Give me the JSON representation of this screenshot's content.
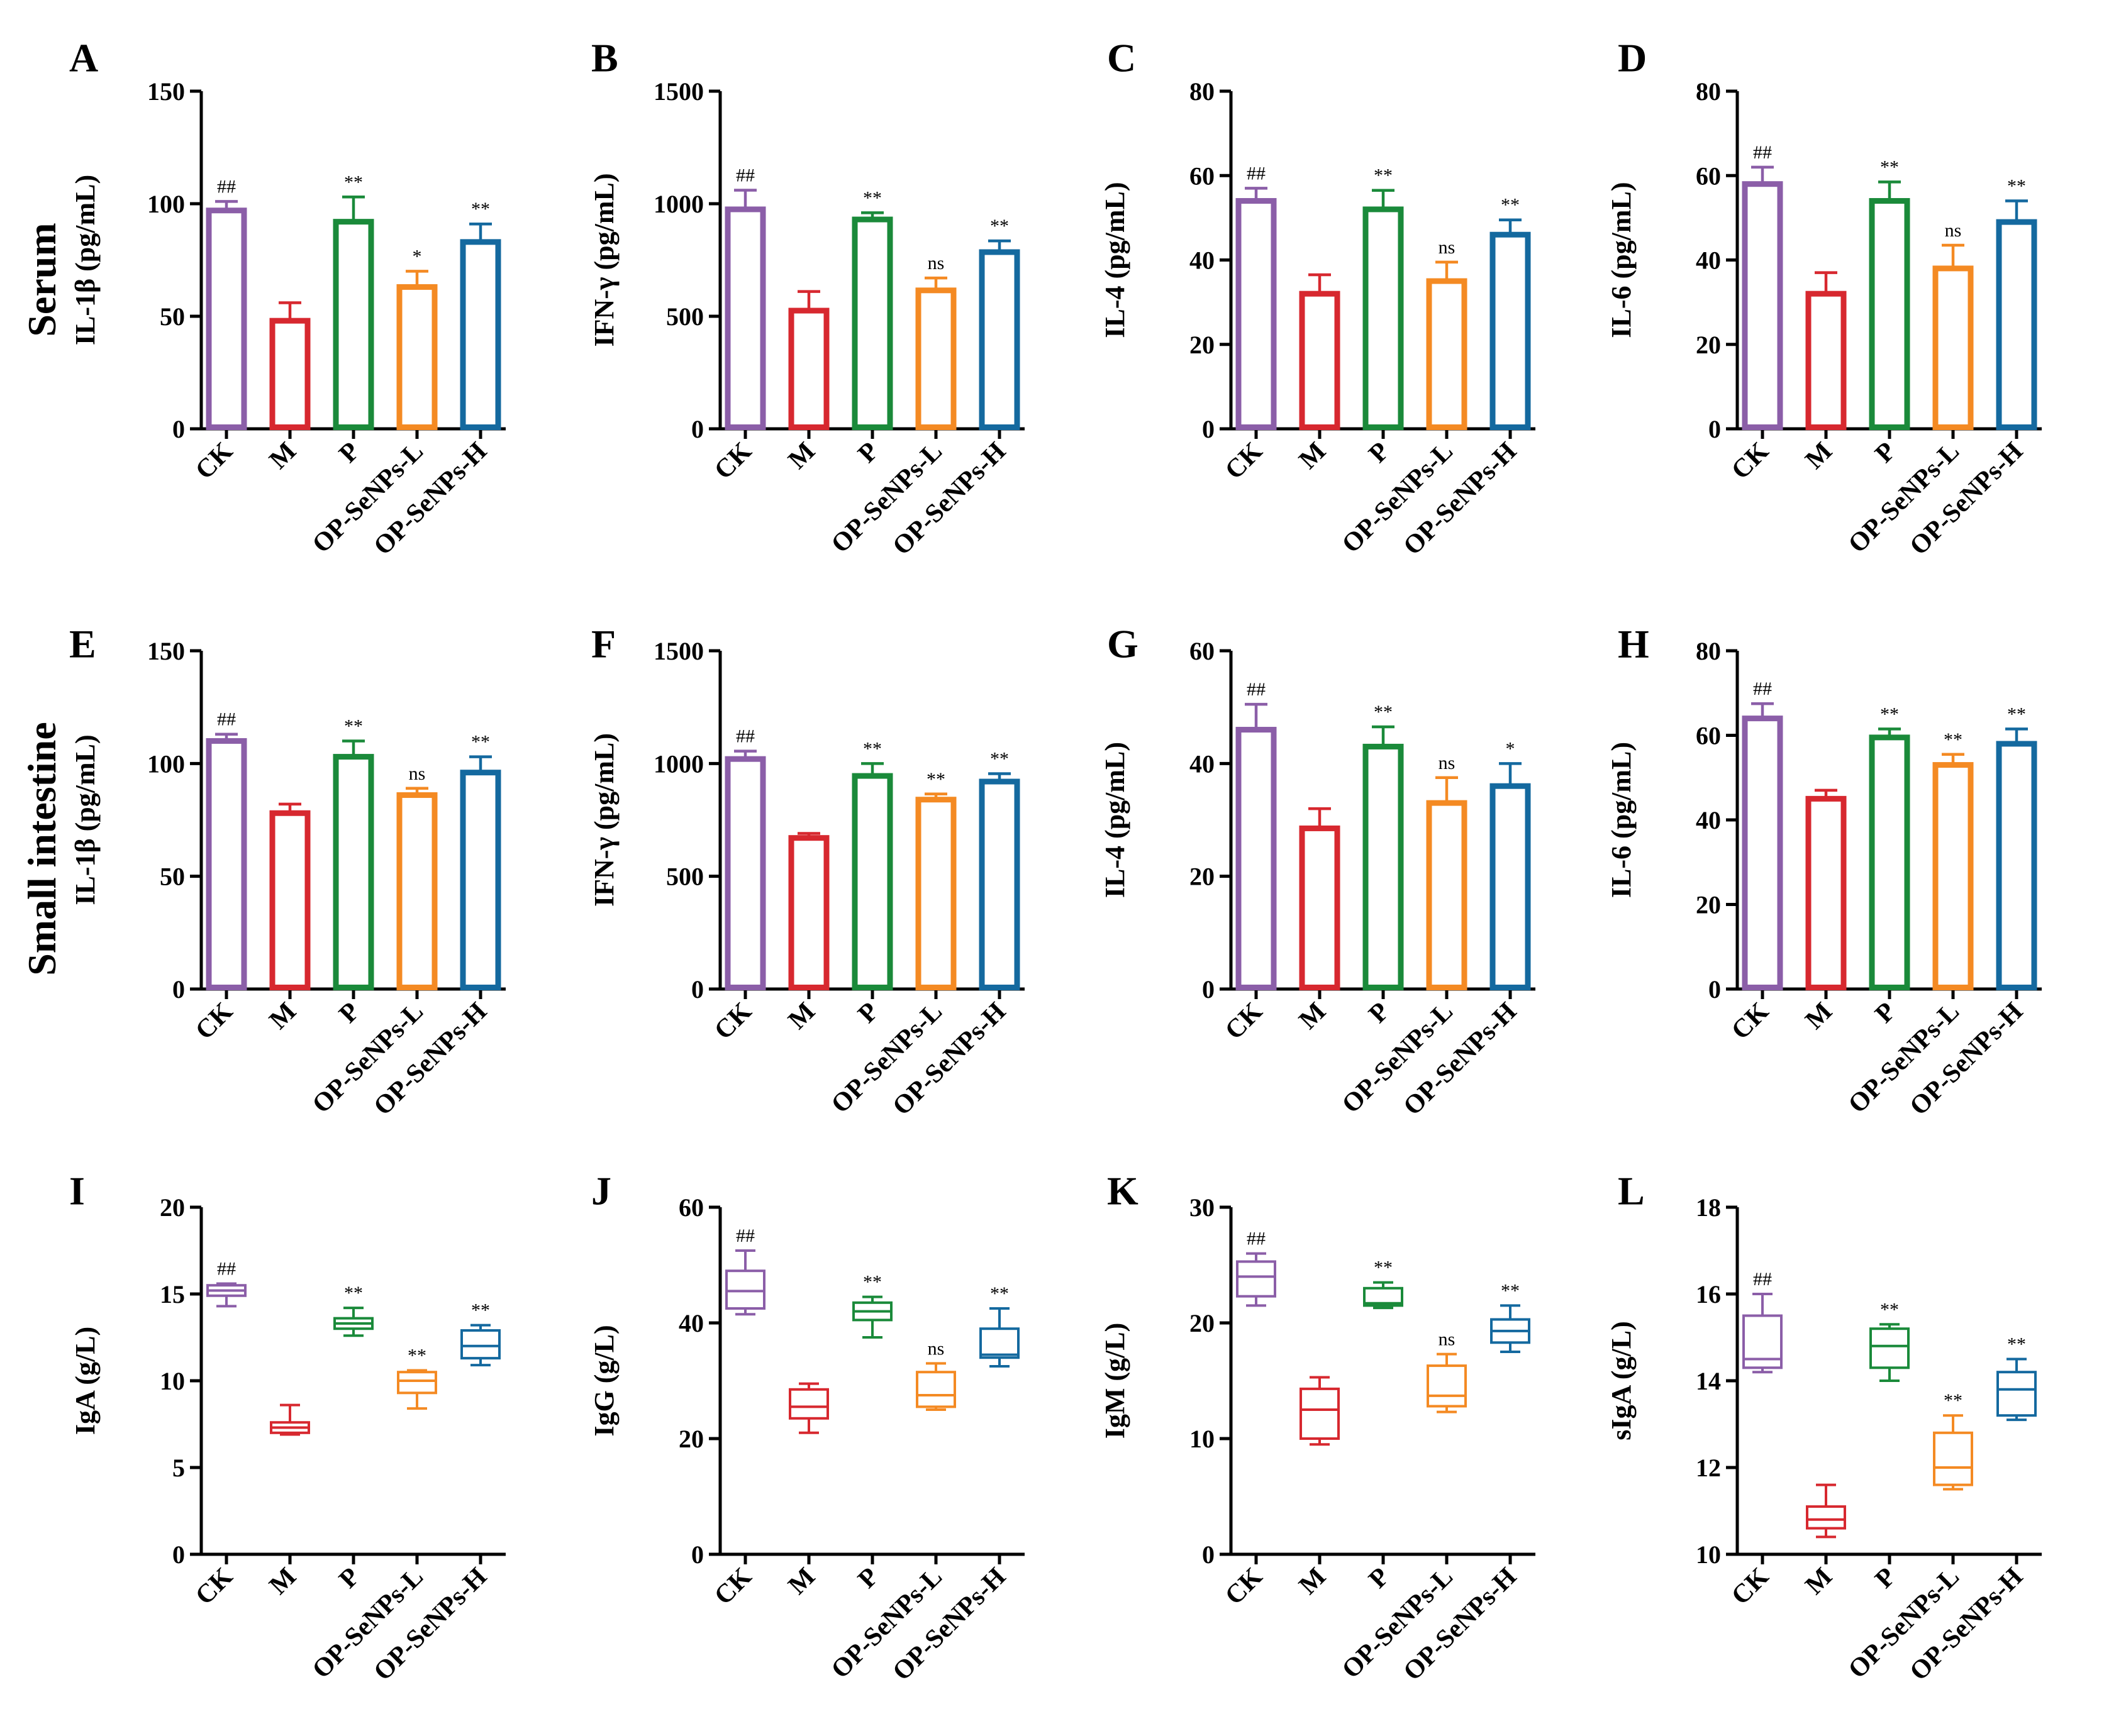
{
  "row_labels": [
    "Serum",
    "Small intestine"
  ],
  "colors": {
    "CK": "#8b5ea8",
    "M": "#d7282f",
    "P": "#1a8a3a",
    "OP-SeNPs-L": "#f48a23",
    "OP-SeNPs-H": "#14699f",
    "axis": "#000000"
  },
  "groups": [
    "CK",
    "M",
    "P",
    "OP-SeNPs-L",
    "OP-SeNPs-H"
  ],
  "chart_data": [
    {
      "panel": "A",
      "type": "bar",
      "row": "Serum",
      "ylabel": "IL-1β (pg/mL)",
      "ylim": [
        0,
        150
      ],
      "yticks": [
        0,
        50,
        100,
        150
      ],
      "categories": [
        "CK",
        "M",
        "P",
        "OP-SeNPs-L",
        "OP-SeNPs-H"
      ],
      "values": [
        97,
        48,
        92,
        63,
        83
      ],
      "errors": [
        4,
        8,
        11,
        7,
        8
      ],
      "significance": [
        "##",
        "",
        "**",
        "*",
        "**"
      ]
    },
    {
      "panel": "B",
      "type": "bar",
      "row": "Serum",
      "ylabel": "IFN-γ (pg/mL)",
      "ylim": [
        0,
        1500
      ],
      "yticks": [
        0,
        500,
        1000,
        1500
      ],
      "categories": [
        "CK",
        "M",
        "P",
        "OP-SeNPs-L",
        "OP-SeNPs-H"
      ],
      "values": [
        975,
        525,
        930,
        615,
        785
      ],
      "errors": [
        85,
        85,
        30,
        55,
        50
      ],
      "significance": [
        "##",
        "",
        "**",
        "ns",
        "**"
      ]
    },
    {
      "panel": "C",
      "type": "bar",
      "row": "Serum",
      "ylabel": "IL-4 (pg/mL)",
      "ylim": [
        0,
        80
      ],
      "yticks": [
        0,
        20,
        40,
        60,
        80
      ],
      "categories": [
        "CK",
        "M",
        "P",
        "OP-SeNPs-L",
        "OP-SeNPs-H"
      ],
      "values": [
        54,
        32,
        52,
        35,
        46
      ],
      "errors": [
        3,
        4.5,
        4.5,
        4.5,
        3.5
      ],
      "significance": [
        "##",
        "",
        "**",
        "ns",
        "**"
      ]
    },
    {
      "panel": "D",
      "type": "bar",
      "row": "Serum",
      "ylabel": "IL-6 (pg/mL)",
      "ylim": [
        0,
        80
      ],
      "yticks": [
        0,
        20,
        40,
        60,
        80
      ],
      "categories": [
        "CK",
        "M",
        "P",
        "OP-SeNPs-L",
        "OP-SeNPs-H"
      ],
      "values": [
        58,
        32,
        54,
        38,
        49
      ],
      "errors": [
        4,
        5,
        4.5,
        5.5,
        5
      ],
      "significance": [
        "##",
        "",
        "**",
        "ns",
        "**"
      ]
    },
    {
      "panel": "E",
      "type": "bar",
      "row": "Small intestine",
      "ylabel": "IL-1β (pg/mL)",
      "ylim": [
        0,
        150
      ],
      "yticks": [
        0,
        50,
        100,
        150
      ],
      "categories": [
        "CK",
        "M",
        "P",
        "OP-SeNPs-L",
        "OP-SeNPs-H"
      ],
      "values": [
        110,
        78,
        103,
        86,
        96
      ],
      "errors": [
        3,
        4,
        7,
        3,
        7
      ],
      "significance": [
        "##",
        "",
        "**",
        "ns",
        "**"
      ]
    },
    {
      "panel": "F",
      "type": "bar",
      "row": "Small intestine",
      "ylabel": "IFN-γ (pg/mL)",
      "ylim": [
        0,
        1500
      ],
      "yticks": [
        0,
        500,
        1000,
        1500
      ],
      "categories": [
        "CK",
        "M",
        "P",
        "OP-SeNPs-L",
        "OP-SeNPs-H"
      ],
      "values": [
        1020,
        670,
        945,
        840,
        920
      ],
      "errors": [
        35,
        20,
        55,
        25,
        35
      ],
      "significance": [
        "##",
        "",
        "**",
        "**",
        "**"
      ]
    },
    {
      "panel": "G",
      "type": "bar",
      "row": "Small intestine",
      "ylabel": "IL-4 (pg/mL)",
      "ylim": [
        0,
        60
      ],
      "yticks": [
        0,
        20,
        40,
        60
      ],
      "categories": [
        "CK",
        "M",
        "P",
        "OP-SeNPs-L",
        "OP-SeNPs-H"
      ],
      "values": [
        46,
        28.5,
        43,
        33,
        36
      ],
      "errors": [
        4.5,
        3.5,
        3.5,
        4.5,
        4
      ],
      "significance": [
        "##",
        "",
        "**",
        "ns",
        "*"
      ]
    },
    {
      "panel": "H",
      "type": "bar",
      "row": "Small intestine",
      "ylabel": "IL-6 (pg/mL)",
      "ylim": [
        0,
        80
      ],
      "yticks": [
        0,
        20,
        40,
        60,
        80
      ],
      "categories": [
        "CK",
        "M",
        "P",
        "OP-SeNPs-L",
        "OP-SeNPs-H"
      ],
      "values": [
        64,
        45,
        59.5,
        53,
        58
      ],
      "errors": [
        3.5,
        2,
        2,
        2.5,
        3.5
      ],
      "significance": [
        "##",
        "",
        "**",
        "**",
        "**"
      ]
    },
    {
      "panel": "I",
      "type": "box",
      "ylabel": "IgA (g/L)",
      "ylim": [
        0,
        20
      ],
      "yticks": [
        0,
        5,
        10,
        15,
        20
      ],
      "categories": [
        "CK",
        "M",
        "P",
        "OP-SeNPs-L",
        "OP-SeNPs-H"
      ],
      "boxes": [
        {
          "min": 14.3,
          "q1": 14.9,
          "median": 15.2,
          "q3": 15.5,
          "max": 15.6
        },
        {
          "min": 6.9,
          "q1": 7.0,
          "median": 7.3,
          "q3": 7.6,
          "max": 8.6
        },
        {
          "min": 12.6,
          "q1": 13.0,
          "median": 13.3,
          "q3": 13.6,
          "max": 14.2
        },
        {
          "min": 8.4,
          "q1": 9.3,
          "median": 10.0,
          "q3": 10.5,
          "max": 10.6
        },
        {
          "min": 10.9,
          "q1": 11.3,
          "median": 12.0,
          "q3": 12.9,
          "max": 13.2
        }
      ],
      "significance": [
        "##",
        "",
        "**",
        "**",
        "**"
      ]
    },
    {
      "panel": "J",
      "type": "box",
      "ylabel": "IgG (g/L)",
      "ylim": [
        0,
        60
      ],
      "yticks": [
        0,
        20,
        40,
        60
      ],
      "categories": [
        "CK",
        "M",
        "P",
        "OP-SeNPs-L",
        "OP-SeNPs-H"
      ],
      "boxes": [
        {
          "min": 41.5,
          "q1": 42.5,
          "median": 45.5,
          "q3": 49.0,
          "max": 52.5
        },
        {
          "min": 21.0,
          "q1": 23.5,
          "median": 25.5,
          "q3": 28.5,
          "max": 29.5
        },
        {
          "min": 37.5,
          "q1": 40.5,
          "median": 42.0,
          "q3": 43.5,
          "max": 44.5
        },
        {
          "min": 25.0,
          "q1": 25.5,
          "median": 27.5,
          "q3": 31.5,
          "max": 33.0
        },
        {
          "min": 32.5,
          "q1": 34.0,
          "median": 34.5,
          "q3": 39.0,
          "max": 42.5
        }
      ],
      "significance": [
        "##",
        "",
        "**",
        "ns",
        "**"
      ]
    },
    {
      "panel": "K",
      "type": "box",
      "ylabel": "IgM (g/L)",
      "ylim": [
        0,
        30
      ],
      "yticks": [
        0,
        10,
        20,
        30
      ],
      "categories": [
        "CK",
        "M",
        "P",
        "OP-SeNPs-L",
        "OP-SeNPs-H"
      ],
      "boxes": [
        {
          "min": 21.5,
          "q1": 22.3,
          "median": 24.0,
          "q3": 25.3,
          "max": 26.0
        },
        {
          "min": 9.5,
          "q1": 10.0,
          "median": 12.5,
          "q3": 14.3,
          "max": 15.3
        },
        {
          "min": 21.3,
          "q1": 21.5,
          "median": 21.7,
          "q3": 23.0,
          "max": 23.5
        },
        {
          "min": 12.3,
          "q1": 12.8,
          "median": 13.7,
          "q3": 16.3,
          "max": 17.3
        },
        {
          "min": 17.5,
          "q1": 18.3,
          "median": 19.3,
          "q3": 20.3,
          "max": 21.5
        }
      ],
      "significance": [
        "##",
        "",
        "**",
        "ns",
        "**"
      ]
    },
    {
      "panel": "L",
      "type": "box",
      "ylabel": "sIgA (g/L)",
      "ylim": [
        10,
        18
      ],
      "yticks": [
        10,
        12,
        14,
        16,
        18
      ],
      "categories": [
        "CK",
        "M",
        "P",
        "OP-SeNPs-L",
        "OP-SeNPs-H"
      ],
      "boxes": [
        {
          "min": 14.2,
          "q1": 14.3,
          "median": 14.5,
          "q3": 15.5,
          "max": 16.0
        },
        {
          "min": 10.4,
          "q1": 10.6,
          "median": 10.8,
          "q3": 11.1,
          "max": 11.6
        },
        {
          "min": 14.0,
          "q1": 14.3,
          "median": 14.8,
          "q3": 15.2,
          "max": 15.3
        },
        {
          "min": 11.5,
          "q1": 11.6,
          "median": 12.0,
          "q3": 12.8,
          "max": 13.2
        },
        {
          "min": 13.1,
          "q1": 13.2,
          "median": 13.8,
          "q3": 14.2,
          "max": 14.5
        }
      ],
      "significance": [
        "##",
        "",
        "**",
        "**",
        "**"
      ]
    }
  ]
}
